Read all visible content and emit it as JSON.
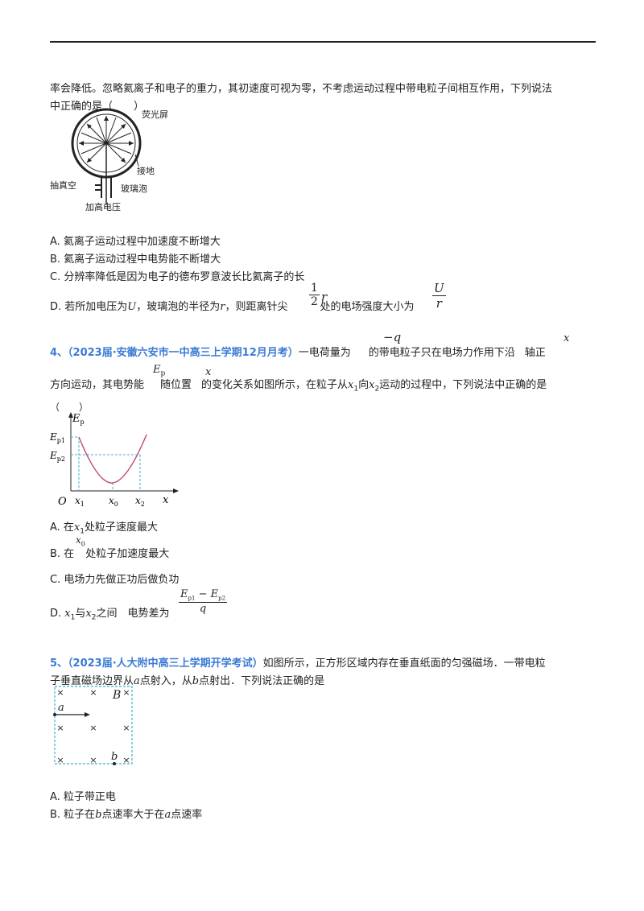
{
  "q3": {
    "intro_line1": "率会降低。忽略氦离子和电子的重力，其初速度可视为零，不考虑运动过程中带电粒子间相互作用，下列说法",
    "intro_line2": "中正确的是（　　）",
    "figure_labels": {
      "screen": "荧光屏",
      "ground": "接地",
      "vacuum": "抽真空",
      "bulb": "玻璃泡",
      "voltage": "加高电压"
    },
    "option_a": "A.  氦离子运动过程中加速度不断增大",
    "option_b": "B.  氦离子运动过程中电势能不断增大",
    "option_c": "C.  分辨率降低是因为电子的德布罗意波长比氦离子的长",
    "option_d_pre": "D.  若所加电压为",
    "option_d_U": "U",
    "option_d_mid": "，玻璃泡的半径为",
    "option_d_r": "r",
    "option_d_mid2": "，则距离针尖",
    "option_d_frac_num": "1",
    "option_d_frac_den": "2",
    "option_d_r2": "r",
    "option_d_post": "处的电场强度大小为",
    "option_d_ans_num": "U",
    "option_d_ans_den": "r"
  },
  "q4": {
    "number": "4、",
    "source": "（2023届·安徽六安市一中高三上学期12月月考）",
    "text1": "一电荷量为",
    "charge": "−q",
    "text2": "的带电粒子只在电场力作用下沿",
    "axis": "x",
    "text3": "轴正",
    "line2_pre": "方向运动，其电势能",
    "ep": "E",
    "ep_sub": "p",
    "line2_mid": "随位置",
    "x": "x",
    "line2_post": "的变化关系如图所示，在粒子从",
    "x1": "x",
    "x1_sub": "1",
    "line2_to": "向",
    "x2": "x",
    "x2_sub": "2",
    "line2_end": "运动的过程中，下列说法中正确的是",
    "paren": "（　　）",
    "graph": {
      "y_axis": "E",
      "y_axis_sub": "p",
      "ep1": "E",
      "ep1_sub": "p1",
      "ep2": "E",
      "ep2_sub": "p2",
      "origin": "O",
      "x1": "x",
      "x1_sub": "1",
      "x0": "x",
      "x0_sub": "0",
      "x2": "x",
      "x2_sub": "2",
      "x_axis": "x",
      "curve_color": "#c0507a",
      "guide_color": "#3ab0d0"
    },
    "option_a_pre": "A.  在",
    "option_a_x": "x",
    "option_a_sub": "1",
    "option_a_post": "处粒子速度最大",
    "option_b_pre": "B.  在",
    "option_b_x": "x",
    "option_b_sub": "0",
    "option_b_post": "处粒子加速度最大",
    "option_c": "C.  电场力先做正功后做负功",
    "option_d_pre": "D.  ",
    "option_d_x1": "x",
    "option_d_x1_sub": "1",
    "option_d_and": "与",
    "option_d_x2": "x",
    "option_d_x2_sub": "2",
    "option_d_mid": "之间　电势差为",
    "option_d_num": "E",
    "option_d_num_sub1": "p1",
    "option_d_minus": " − ",
    "option_d_num2": "E",
    "option_d_num_sub2": "p2",
    "option_d_den": "q"
  },
  "q5": {
    "number": "5、",
    "source": "（2023届·人大附中高三上学期开学考试）",
    "text1": "如图所示，正方形区域内存在垂直纸面的匀强磁场．一带电粒",
    "line2_pre": "子垂直磁场边界从",
    "a": "a",
    "line2_mid": "点射入，从",
    "b": "b",
    "line2_post": "点射出．下列说法正确的是",
    "figure": {
      "B": "B",
      "a": "a",
      "b": "b",
      "cross": "×",
      "border_color": "#3ab0d0"
    },
    "option_a": "A.  粒子带正电",
    "option_b_pre": "B.  粒子在",
    "option_b_b": "b",
    "option_b_mid": "点速率大于在",
    "option_b_a": "a",
    "option_b_post": "点速率"
  }
}
